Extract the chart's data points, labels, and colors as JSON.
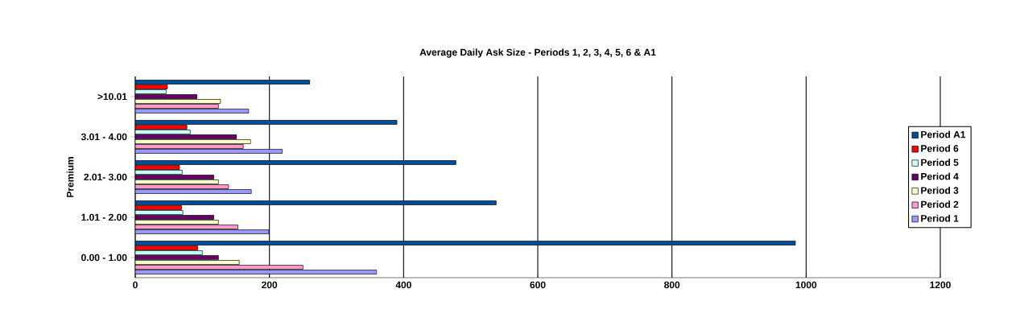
{
  "chart_data": {
    "type": "bar",
    "orientation": "horizontal",
    "title": "Average Daily Ask Size - Periods 1, 2, 3, 4, 5, 6 & A1",
    "ylabel": "Premium",
    "categories": [
      ">10.01",
      "3.01 - 4.00",
      "2.01- 3.00",
      "1.01 - 2.00",
      "0.00 - 1.00"
    ],
    "series": [
      {
        "name": "Period A1",
        "color": "#004c99",
        "values": [
          260,
          390,
          478,
          538,
          984
        ]
      },
      {
        "name": "Period 6",
        "color": "#ff0000",
        "values": [
          48,
          77,
          66,
          69,
          93
        ]
      },
      {
        "name": "Period 5",
        "color": "#ccffff",
        "values": [
          46,
          82,
          70,
          71,
          100
        ]
      },
      {
        "name": "Period 4",
        "color": "#660066",
        "values": [
          92,
          151,
          117,
          117,
          124
        ]
      },
      {
        "name": "Period 3",
        "color": "#ffffcc",
        "values": [
          127,
          172,
          124,
          124,
          155
        ]
      },
      {
        "name": "Period 2",
        "color": "#ff99cc",
        "values": [
          124,
          161,
          139,
          153,
          250
        ]
      },
      {
        "name": "Period 1",
        "color": "#9999ff",
        "values": [
          169,
          219,
          173,
          199,
          360
        ]
      }
    ],
    "xlim": [
      0,
      1200
    ],
    "xticks": [
      0,
      200,
      400,
      600,
      800,
      1000,
      1200
    ],
    "grid": "x",
    "legend": "right"
  }
}
